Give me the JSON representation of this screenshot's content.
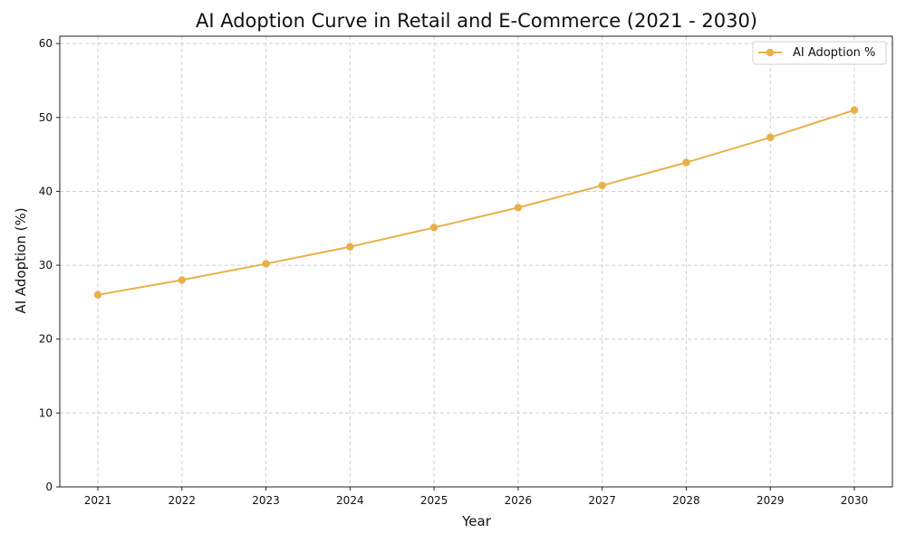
{
  "chart_data": {
    "type": "line",
    "title": "AI Adoption Curve in Retail and E-Commerce (2021 - 2030)",
    "xlabel": "Year",
    "ylabel": "AI Adoption (%)",
    "x": [
      "2021",
      "2022",
      "2023",
      "2024",
      "2025",
      "2026",
      "2027",
      "2028",
      "2029",
      "2030"
    ],
    "series": [
      {
        "name": "AI Adoption %",
        "values": [
          26.0,
          28.0,
          30.2,
          32.5,
          35.1,
          37.8,
          40.8,
          43.9,
          47.3,
          51.0
        ],
        "color": "#E8B04A"
      }
    ],
    "ylim": [
      0,
      61
    ],
    "yticks": [
      0,
      10,
      20,
      30,
      40,
      50,
      60
    ],
    "grid": true,
    "legend": "top-right",
    "marker": "circle"
  }
}
